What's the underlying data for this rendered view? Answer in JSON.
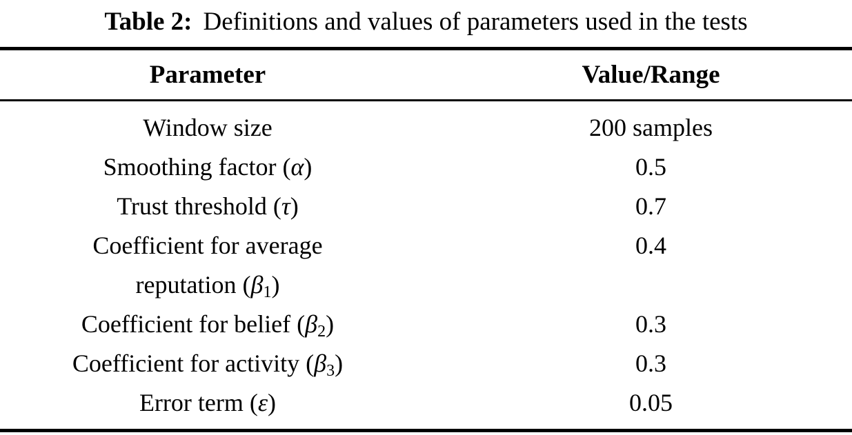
{
  "caption": {
    "label": "Table 2:",
    "text": "Definitions and values of parameters used in the tests"
  },
  "columns": [
    "Parameter",
    "Value/Range"
  ],
  "rows": [
    {
      "param": {
        "pre": "Window size",
        "sym": "",
        "sub": "",
        "post": ""
      },
      "value": "200 samples"
    },
    {
      "param": {
        "pre": "Smoothing factor (",
        "sym": "α",
        "sub": "",
        "post": ")"
      },
      "value": "0.5"
    },
    {
      "param": {
        "pre": "Trust threshold (",
        "sym": "τ",
        "sub": "",
        "post": ")"
      },
      "value": "0.7"
    },
    {
      "param": {
        "pre": "Coefficient for average",
        "sym": "",
        "sub": "",
        "post": ""
      },
      "param2": {
        "pre": "reputation (",
        "sym": "β",
        "sub": "1",
        "post": ")"
      },
      "value": "0.4"
    },
    {
      "param": {
        "pre": "Coefficient for belief (",
        "sym": "β",
        "sub": "2",
        "post": ")"
      },
      "value": "0.3"
    },
    {
      "param": {
        "pre": "Coefficient for activity (",
        "sym": "β",
        "sub": "3",
        "post": ")"
      },
      "value": "0.3"
    },
    {
      "param": {
        "pre": "Error term (",
        "sym": "ε",
        "sub": "",
        "post": ")"
      },
      "value": "0.05"
    }
  ]
}
